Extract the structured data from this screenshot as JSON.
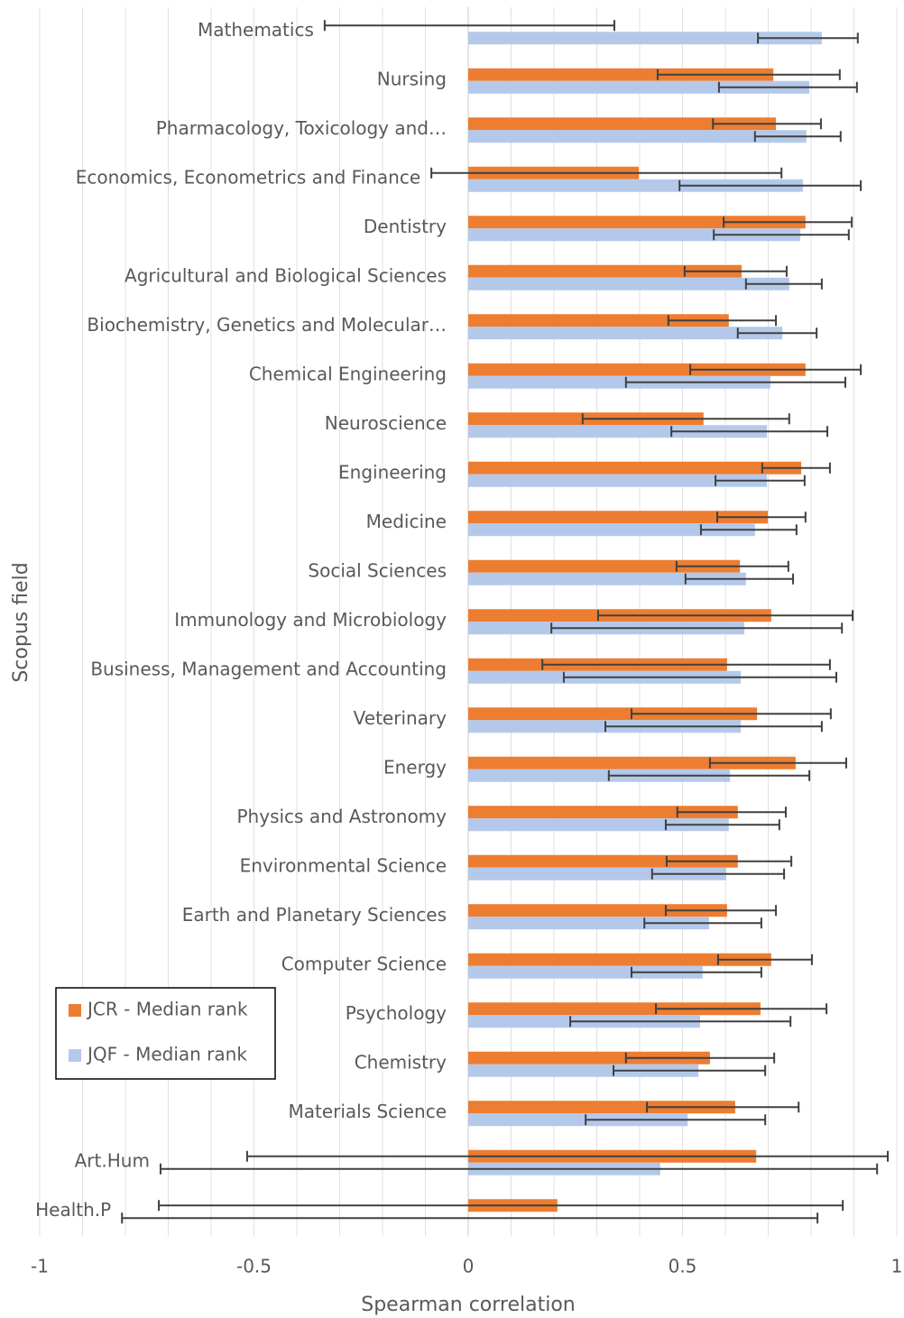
{
  "chart_data": {
    "type": "bar",
    "orientation": "horizontal",
    "x_label": "Spearman correlation",
    "y_label": "Scopus field",
    "categories": [
      "Mathematics",
      "Nursing",
      "Pharmacology, Toxicology and…",
      "Economics, Econometrics and Finance",
      "Dentistry",
      "Agricultural and Biological Sciences",
      "Biochemistry, Genetics and Molecular…",
      "Chemical Engineering",
      "Neuroscience",
      "Engineering",
      "Medicine",
      "Social Sciences",
      "Immunology and Microbiology",
      "Business, Management and Accounting",
      "Veterinary",
      "Energy",
      "Physics and Astronomy",
      "Environmental Science",
      "Earth and Planetary Sciences",
      "Computer Science",
      "Psychology",
      "Chemistry",
      "Materials Science",
      "Art.Hum",
      "Health.P"
    ],
    "series": [
      {
        "name": "JCR - Median rank",
        "color": "#ed7d31",
        "values": [
          0,
          0.712,
          0.718,
          0.398,
          0.787,
          0.638,
          0.608,
          0.787,
          0.549,
          0.777,
          0.699,
          0.634,
          0.707,
          0.604,
          0.674,
          0.764,
          0.629,
          0.629,
          0.604,
          0.707,
          0.682,
          0.564,
          0.623,
          0.672,
          0.208
        ],
        "ci_low": [
          -0.335,
          0.442,
          0.571,
          -0.086,
          0.596,
          0.505,
          0.467,
          0.518,
          0.267,
          0.686,
          0.581,
          0.486,
          0.303,
          0.173,
          0.381,
          0.564,
          0.488,
          0.463,
          0.461,
          0.583,
          0.438,
          0.368,
          0.417,
          -0.516,
          -0.722
        ],
        "ci_high": [
          0.341,
          0.867,
          0.823,
          0.731,
          0.895,
          0.743,
          0.718,
          0.916,
          0.749,
          0.844,
          0.787,
          0.747,
          0.897,
          0.844,
          0.846,
          0.882,
          0.741,
          0.754,
          0.718,
          0.802,
          0.836,
          0.714,
          0.771,
          0.979,
          0.874
        ]
      },
      {
        "name": "JQF - Median rank",
        "color": "#b4c9ea",
        "values": [
          0.825,
          0.796,
          0.789,
          0.781,
          0.775,
          0.749,
          0.733,
          0.705,
          0.697,
          0.697,
          0.669,
          0.648,
          0.644,
          0.636,
          0.636,
          0.611,
          0.608,
          0.602,
          0.562,
          0.547,
          0.541,
          0.537,
          0.512,
          0.448,
          0
        ],
        "ci_low": [
          0.676,
          0.585,
          0.669,
          0.493,
          0.573,
          0.648,
          0.629,
          0.368,
          0.474,
          0.577,
          0.543,
          0.507,
          0.194,
          0.223,
          0.32,
          0.328,
          0.461,
          0.429,
          0.411,
          0.381,
          0.238,
          0.339,
          0.274,
          -0.718,
          -0.808
        ],
        "ci_high": [
          0.909,
          0.907,
          0.869,
          0.916,
          0.888,
          0.825,
          0.813,
          0.88,
          0.838,
          0.785,
          0.766,
          0.758,
          0.872,
          0.859,
          0.825,
          0.796,
          0.726,
          0.737,
          0.684,
          0.684,
          0.752,
          0.693,
          0.693,
          0.954,
          0.815
        ]
      }
    ],
    "xlim": [
      -1,
      1
    ],
    "xticks": [
      -1,
      -0.5,
      0,
      0.5,
      1
    ],
    "xgrid": [
      -1,
      -0.9,
      -0.8,
      -0.7,
      -0.6,
      -0.5,
      -0.4,
      -0.3,
      -0.2,
      -0.1,
      0,
      0.1,
      0.2,
      0.3,
      0.4,
      0.5,
      0.6,
      0.7,
      0.8,
      0.9,
      1
    ],
    "legend": "lower-left"
  }
}
